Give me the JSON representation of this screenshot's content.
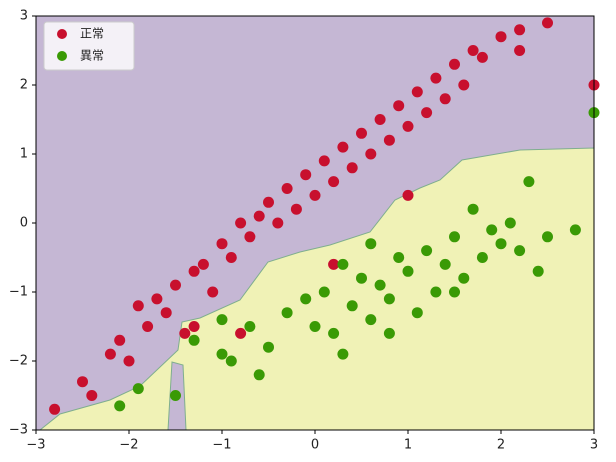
{
  "chart_data": {
    "type": "scatter",
    "xlim": [
      -3,
      3
    ],
    "ylim": [
      -3,
      3
    ],
    "xticks": [
      {
        "value": -3,
        "label": "−3"
      },
      {
        "value": -2,
        "label": "−2"
      },
      {
        "value": -1,
        "label": "−1"
      },
      0,
      1,
      2,
      3
    ],
    "yticks": [
      {
        "value": -3,
        "label": "−3"
      },
      {
        "value": -2,
        "label": "−2"
      },
      {
        "value": -1,
        "label": "−1"
      },
      0,
      1,
      2,
      3
    ],
    "legend": "upper left",
    "series": [
      {
        "name": "正常",
        "color": "#c8102e",
        "x": [
          -2.8,
          -2.5,
          -2.4,
          -2.2,
          -2.1,
          -2.0,
          -1.9,
          -1.8,
          -1.7,
          -1.6,
          -1.5,
          -1.4,
          -1.3,
          -1.2,
          -1.1,
          -1.0,
          -0.9,
          -0.8,
          -0.7,
          -0.6,
          -0.5,
          -0.4,
          -0.3,
          -0.2,
          -0.1,
          0.0,
          0.1,
          0.2,
          0.3,
          0.4,
          0.5,
          0.6,
          0.7,
          0.8,
          0.9,
          1.0,
          1.1,
          1.2,
          1.3,
          1.4,
          1.5,
          1.6,
          1.7,
          1.8,
          2.0,
          2.2,
          2.5,
          2.2,
          3.0,
          -1.3,
          -0.8,
          0.2,
          1.0
        ],
        "y": [
          -2.7,
          -2.3,
          -2.5,
          -1.9,
          -1.7,
          -2.0,
          -1.2,
          -1.5,
          -1.1,
          -1.3,
          -0.9,
          -1.6,
          -0.7,
          -0.6,
          -1.0,
          -0.3,
          -0.5,
          0.0,
          -0.2,
          0.1,
          0.3,
          0.0,
          0.5,
          0.2,
          0.7,
          0.4,
          0.9,
          0.6,
          1.1,
          0.8,
          1.3,
          1.0,
          1.5,
          1.2,
          1.7,
          1.4,
          1.9,
          1.6,
          2.1,
          1.8,
          2.3,
          2.0,
          2.5,
          2.4,
          2.7,
          2.8,
          2.9,
          2.5,
          2.0,
          -1.5,
          -1.6,
          -0.6,
          0.4
        ]
      },
      {
        "name": "異常",
        "color": "#3a9a05",
        "x": [
          -2.1,
          -1.9,
          -1.5,
          -1.3,
          -1.0,
          -0.9,
          -0.7,
          -0.5,
          -0.3,
          -0.1,
          0.0,
          0.1,
          0.2,
          0.3,
          0.4,
          0.5,
          0.6,
          0.7,
          0.8,
          0.9,
          1.0,
          1.1,
          1.2,
          1.3,
          1.4,
          1.5,
          1.6,
          1.7,
          1.8,
          1.9,
          2.0,
          2.1,
          2.2,
          2.3,
          2.5,
          2.8,
          -0.6,
          0.3,
          0.8,
          1.5,
          2.4,
          3.0,
          -1.0,
          0.6
        ],
        "y": [
          -2.65,
          -2.4,
          -2.5,
          -1.7,
          -1.9,
          -2.0,
          -1.5,
          -1.8,
          -1.3,
          -1.1,
          -1.5,
          -1.0,
          -1.6,
          -0.6,
          -1.2,
          -0.8,
          -1.4,
          -0.9,
          -1.1,
          -0.5,
          -0.7,
          -1.3,
          -0.4,
          -1.0,
          -0.6,
          -0.2,
          -0.8,
          0.2,
          -0.5,
          -0.1,
          -0.3,
          0.0,
          -0.4,
          0.6,
          -0.2,
          -0.1,
          -2.2,
          -1.9,
          -1.6,
          -1.0,
          -0.7,
          1.6,
          -1.4,
          -0.3
        ]
      }
    ]
  }
}
